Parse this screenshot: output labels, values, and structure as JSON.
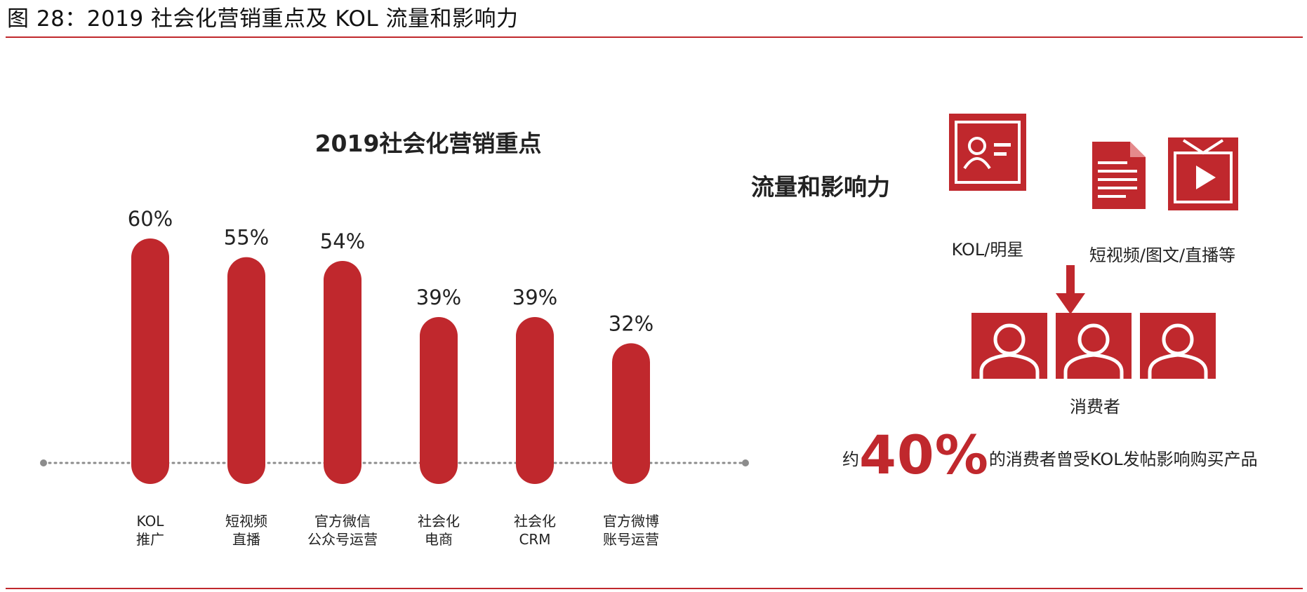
{
  "figure": {
    "caption": "图 28：2019 社会化营销重点及 KOL 流量和影响力"
  },
  "chart_data": {
    "type": "bar",
    "title": "2019社会化营销重点",
    "categories": [
      [
        "KOL",
        "推广"
      ],
      [
        "短视频",
        "直播"
      ],
      [
        "官方微信",
        "公众号运营"
      ],
      [
        "社会化",
        "电商"
      ],
      [
        "社会化",
        "CRM"
      ],
      [
        "官方微博",
        "账号运营"
      ]
    ],
    "values": [
      60,
      55,
      54,
      39,
      39,
      32
    ],
    "value_labels": [
      "60%",
      "55%",
      "54%",
      "39%",
      "39%",
      "32%"
    ],
    "ylim": [
      0,
      60
    ],
    "grid": false,
    "bar_color": "#c0282d"
  },
  "infographic": {
    "title": "流量和影响力",
    "kol_label": "KOL/明星",
    "media_label": "短视频/图文/直播等",
    "consumer_label": "消费者",
    "stat_prefix": "约",
    "stat_value": "40%",
    "stat_suffix": "的消费者曾受KOL发帖影响购买产品",
    "accent_color": "#c0282d",
    "icons": [
      "id-card-icon",
      "article-icon",
      "video-play-icon",
      "down-arrow-icon",
      "person-icon"
    ]
  }
}
